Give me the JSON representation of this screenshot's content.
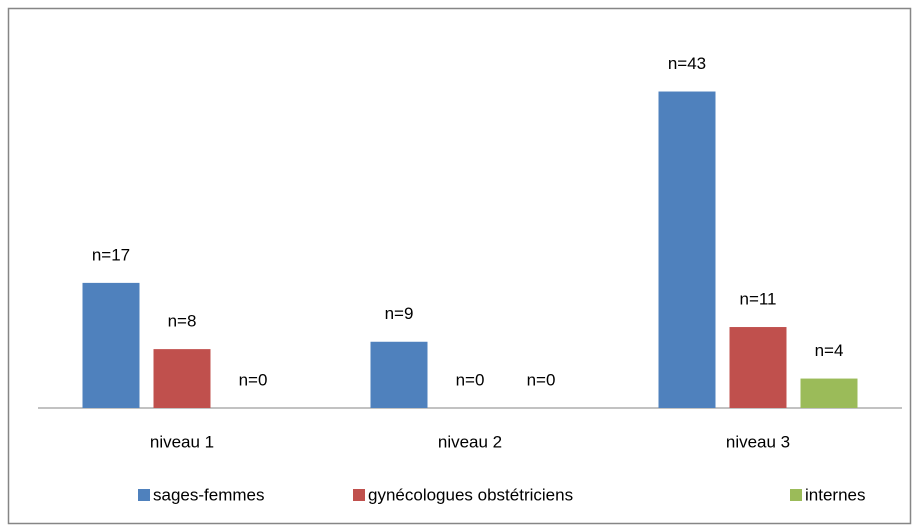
{
  "chart_data": {
    "type": "bar",
    "categories": [
      "niveau 1",
      "niveau 2",
      "niveau 3"
    ],
    "series": [
      {
        "name": "sages-femmes",
        "color": "#4f81bd",
        "values": [
          17,
          9,
          43
        ],
        "value_labels": [
          "n=17",
          "n=9",
          "n=43"
        ]
      },
      {
        "name": "gynécologues obstétriciens",
        "color": "#c0504d",
        "values": [
          8,
          0,
          11
        ],
        "value_labels": [
          "n=8",
          "n=0",
          "n=11"
        ]
      },
      {
        "name": "internes",
        "color": "#9bbb59",
        "values": [
          0,
          0,
          4
        ],
        "value_labels": [
          "n=0",
          "n=0",
          "n=4"
        ]
      }
    ],
    "ylim": [
      0,
      50
    ],
    "legend": "bottom"
  }
}
